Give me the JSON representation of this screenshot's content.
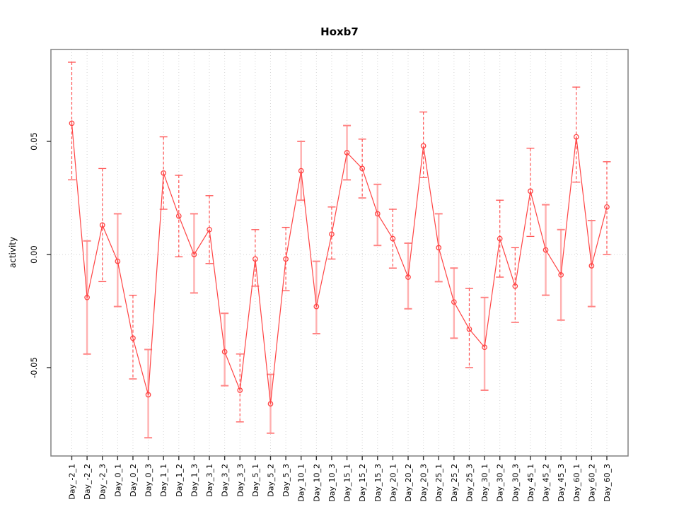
{
  "page": {
    "background": "#ffffff"
  },
  "chart_data": {
    "type": "line",
    "title": "Hoxb7",
    "xlabel": "",
    "ylabel": "activity",
    "legend": "none",
    "grid": {
      "vertical_per_category": true,
      "horizontal_at_zero": true,
      "style": "dotted"
    },
    "ylim": [
      -0.089,
      0.0906
    ],
    "yticks": {
      "labels": [
        "0.05",
        "0.00",
        "-0.05"
      ],
      "values": [
        0.05,
        0.0,
        -0.05
      ]
    },
    "categories": [
      "Day_-2_1",
      "Day_-2_2",
      "Day_-2_3",
      "Day_0_1",
      "Day_0_2",
      "Day_0_3",
      "Day_1_1",
      "Day_1_2",
      "Day_1_3",
      "Day_3_1",
      "Day_3_2",
      "Day_3_3",
      "Day_5_1",
      "Day_5_2",
      "Day_5_3",
      "Day_10_1",
      "Day_10_2",
      "Day_10_3",
      "Day_15_1",
      "Day_15_2",
      "Day_15_3",
      "Day_20_1",
      "Day_20_2",
      "Day_20_3",
      "Day_25_1",
      "Day_25_2",
      "Day_25_3",
      "Day_30_1",
      "Day_30_2",
      "Day_30_3",
      "Day_45_1",
      "Day_45_2",
      "Day_45_3",
      "Day_60_1",
      "Day_60_2",
      "Day_60_3"
    ],
    "series": [
      {
        "name": "activity",
        "marker": "open-circle",
        "values": [
          0.058,
          -0.019,
          0.013,
          -0.003,
          -0.037,
          -0.062,
          0.036,
          0.017,
          0.0,
          0.011,
          -0.043,
          -0.06,
          -0.002,
          -0.066,
          -0.002,
          0.037,
          -0.023,
          0.009,
          0.045,
          0.038,
          0.018,
          0.007,
          -0.01,
          0.048,
          0.003,
          -0.021,
          -0.033,
          -0.041,
          0.007,
          -0.014,
          0.028,
          0.002,
          -0.009,
          0.052,
          -0.005,
          0.021
        ],
        "err_high": [
          0.085,
          0.006,
          0.038,
          0.018,
          -0.018,
          -0.042,
          0.052,
          0.035,
          0.018,
          0.026,
          -0.026,
          -0.044,
          0.011,
          -0.053,
          0.012,
          0.05,
          -0.003,
          0.021,
          0.057,
          0.051,
          0.031,
          0.02,
          0.005,
          0.063,
          0.018,
          -0.006,
          -0.015,
          -0.019,
          0.024,
          0.003,
          0.047,
          0.022,
          0.011,
          0.074,
          0.015,
          0.041
        ],
        "err_low": [
          0.033,
          -0.044,
          -0.012,
          -0.023,
          -0.055,
          -0.081,
          0.02,
          -0.001,
          -0.017,
          -0.004,
          -0.058,
          -0.074,
          -0.014,
          -0.079,
          -0.016,
          0.024,
          -0.035,
          -0.002,
          0.033,
          0.025,
          0.004,
          -0.006,
          -0.024,
          0.034,
          -0.012,
          -0.037,
          -0.05,
          -0.06,
          -0.01,
          -0.03,
          0.008,
          -0.018,
          -0.029,
          0.032,
          -0.023,
          0.0
        ],
        "err_style": [
          "dashed",
          "solid",
          "dashed",
          "solid",
          "dashed",
          "solid",
          "dashed",
          "dashed",
          "solid",
          "dashed",
          "solid",
          "dashed",
          "dashed",
          "solid",
          "dashed",
          "solid",
          "solid",
          "dashed",
          "solid",
          "dashed",
          "solid",
          "dashed",
          "solid",
          "dashed",
          "solid",
          "solid",
          "dashed",
          "solid",
          "dashed",
          "dashed",
          "dashed",
          "solid",
          "solid",
          "dashed",
          "solid",
          "dashed"
        ]
      }
    ],
    "colors": {
      "line": "#ff4444",
      "point": "#ff4444",
      "err_dashed": "#ff5252",
      "err_solid": "#ffb0b0",
      "err_solid_cap": "#ff8585",
      "grid": "#d4d4d4",
      "box": "#808080",
      "tick": "#333333",
      "text": "#000000"
    }
  }
}
